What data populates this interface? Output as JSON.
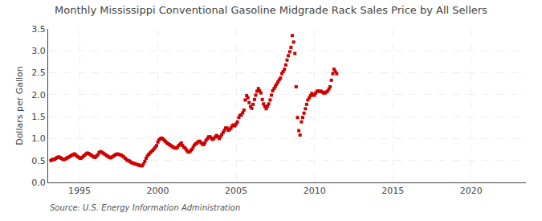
{
  "chart_data": {
    "type": "scatter",
    "title": "Monthly Mississippi Conventional Gasoline Midgrade Rack Sales Price by All Sellers",
    "ylabel": "Dollars per Gallon",
    "annotations": [
      "Source: U.S. Energy Information Administration"
    ],
    "color": "#CC0000",
    "marker": "square",
    "grid": true,
    "xlim": [
      1993.0,
      2023.5
    ],
    "ylim": [
      0.0,
      3.5
    ],
    "xticks": [
      1995,
      2000,
      2005,
      2010,
      2015,
      2020
    ],
    "yticks": [
      {
        "value": 0.0,
        "label": "0.0"
      },
      0.5,
      {
        "value": 1.0,
        "label": "1.0"
      },
      1.5,
      {
        "value": 2.0,
        "label": "2.0"
      },
      2.5,
      {
        "value": 3.0,
        "label": "3.0"
      },
      3.5
    ],
    "x": [
      1993.17,
      1993.25,
      1993.33,
      1993.42,
      1993.5,
      1993.58,
      1993.67,
      1993.75,
      1993.83,
      1993.92,
      1994.0,
      1994.08,
      1994.17,
      1994.25,
      1994.33,
      1994.42,
      1994.5,
      1994.58,
      1994.67,
      1994.75,
      1994.83,
      1994.92,
      1995.0,
      1995.08,
      1995.17,
      1995.25,
      1995.33,
      1995.42,
      1995.5,
      1995.58,
      1995.67,
      1995.75,
      1995.83,
      1995.92,
      1996.0,
      1996.08,
      1996.17,
      1996.25,
      1996.33,
      1996.42,
      1996.5,
      1996.58,
      1996.67,
      1996.75,
      1996.83,
      1996.92,
      1997.0,
      1997.08,
      1997.17,
      1997.25,
      1997.33,
      1997.42,
      1997.5,
      1997.58,
      1997.67,
      1997.75,
      1997.83,
      1997.92,
      1998.0,
      1998.08,
      1998.17,
      1998.25,
      1998.33,
      1998.42,
      1998.5,
      1998.58,
      1998.67,
      1998.75,
      1998.83,
      1998.92,
      1999.0,
      1999.08,
      1999.17,
      1999.25,
      1999.33,
      1999.42,
      1999.5,
      1999.58,
      1999.67,
      1999.75,
      1999.83,
      1999.92,
      2000.0,
      2000.08,
      2000.17,
      2000.25,
      2000.33,
      2000.42,
      2000.5,
      2000.58,
      2000.67,
      2000.75,
      2000.83,
      2000.92,
      2001.0,
      2001.08,
      2001.17,
      2001.25,
      2001.33,
      2001.42,
      2001.5,
      2001.58,
      2001.67,
      2001.75,
      2001.83,
      2001.92,
      2002.0,
      2002.08,
      2002.17,
      2002.25,
      2002.33,
      2002.42,
      2002.5,
      2002.58,
      2002.67,
      2002.75,
      2002.83,
      2002.92,
      2003.0,
      2003.08,
      2003.17,
      2003.25,
      2003.33,
      2003.42,
      2003.5,
      2003.58,
      2003.67,
      2003.75,
      2003.83,
      2003.92,
      2004.0,
      2004.08,
      2004.17,
      2004.25,
      2004.33,
      2004.42,
      2004.5,
      2004.58,
      2004.67,
      2004.75,
      2004.83,
      2004.92,
      2005.0,
      2005.08,
      2005.17,
      2005.25,
      2005.33,
      2005.42,
      2005.5,
      2005.58,
      2005.67,
      2005.75,
      2005.83,
      2005.92,
      2006.0,
      2006.08,
      2006.17,
      2006.25,
      2006.33,
      2006.42,
      2006.5,
      2006.58,
      2006.67,
      2006.75,
      2006.83,
      2006.92,
      2007.0,
      2007.08,
      2007.17,
      2007.25,
      2007.33,
      2007.42,
      2007.5,
      2007.58,
      2007.67,
      2007.75,
      2007.83,
      2007.92,
      2008.0,
      2008.08,
      2008.17,
      2008.25,
      2008.33,
      2008.42,
      2008.5,
      2008.58,
      2008.67,
      2008.75,
      2008.83,
      2008.92,
      2009.0,
      2009.08,
      2009.17,
      2009.25,
      2009.33,
      2009.42,
      2009.5,
      2009.58,
      2009.67,
      2009.75,
      2009.83,
      2009.92,
      2010.0,
      2010.08,
      2010.17,
      2010.25,
      2010.33,
      2010.42,
      2010.5,
      2010.58,
      2010.67,
      2010.75,
      2010.83,
      2010.92,
      2011.0,
      2011.08,
      2011.17,
      2011.25,
      2011.33,
      2011.42
    ],
    "values": [
      0.5,
      0.52,
      0.52,
      0.53,
      0.55,
      0.57,
      0.58,
      0.57,
      0.55,
      0.53,
      0.52,
      0.53,
      0.55,
      0.57,
      0.58,
      0.6,
      0.62,
      0.63,
      0.65,
      0.63,
      0.6,
      0.58,
      0.56,
      0.55,
      0.57,
      0.6,
      0.62,
      0.65,
      0.67,
      0.66,
      0.64,
      0.62,
      0.6,
      0.58,
      0.57,
      0.6,
      0.63,
      0.68,
      0.7,
      0.69,
      0.67,
      0.65,
      0.63,
      0.61,
      0.59,
      0.57,
      0.56,
      0.58,
      0.6,
      0.62,
      0.64,
      0.65,
      0.64,
      0.63,
      0.62,
      0.6,
      0.58,
      0.55,
      0.52,
      0.5,
      0.49,
      0.47,
      0.45,
      0.44,
      0.43,
      0.42,
      0.41,
      0.4,
      0.39,
      0.38,
      0.38,
      0.42,
      0.48,
      0.55,
      0.6,
      0.64,
      0.67,
      0.7,
      0.73,
      0.76,
      0.8,
      0.84,
      0.92,
      0.97,
      1.0,
      1.01,
      0.99,
      0.96,
      0.93,
      0.9,
      0.88,
      0.86,
      0.84,
      0.82,
      0.8,
      0.79,
      0.78,
      0.8,
      0.84,
      0.87,
      0.9,
      0.84,
      0.8,
      0.78,
      0.74,
      0.7,
      0.69,
      0.72,
      0.75,
      0.8,
      0.85,
      0.88,
      0.9,
      0.93,
      0.94,
      0.91,
      0.88,
      0.86,
      0.9,
      0.96,
      1.0,
      1.04,
      1.04,
      1.01,
      0.98,
      1.0,
      1.04,
      1.07,
      1.04,
      1.0,
      1.04,
      1.09,
      1.14,
      1.19,
      1.24,
      1.24,
      1.19,
      1.21,
      1.24,
      1.29,
      1.31,
      1.29,
      1.33,
      1.38,
      1.48,
      1.53,
      1.54,
      1.59,
      1.65,
      1.88,
      1.98,
      1.93,
      1.82,
      1.73,
      1.69,
      1.78,
      1.89,
      1.99,
      2.08,
      2.14,
      2.09,
      2.04,
      1.89,
      1.79,
      1.73,
      1.68,
      1.74,
      1.79,
      1.88,
      1.99,
      2.09,
      2.14,
      2.19,
      2.24,
      2.29,
      2.34,
      2.38,
      2.48,
      2.53,
      2.58,
      2.68,
      2.79,
      2.89,
      2.98,
      3.08,
      3.35,
      3.2,
      2.94,
      2.18,
      1.48,
      1.18,
      1.08,
      1.38,
      1.48,
      1.58,
      1.68,
      1.78,
      1.88,
      1.93,
      1.98,
      2.03,
      1.99,
      1.99,
      2.04,
      2.08,
      2.08,
      2.08,
      2.08,
      2.06,
      2.04,
      2.04,
      2.06,
      2.08,
      2.13,
      2.18,
      2.33,
      2.48,
      2.58,
      2.53,
      2.48
    ]
  }
}
